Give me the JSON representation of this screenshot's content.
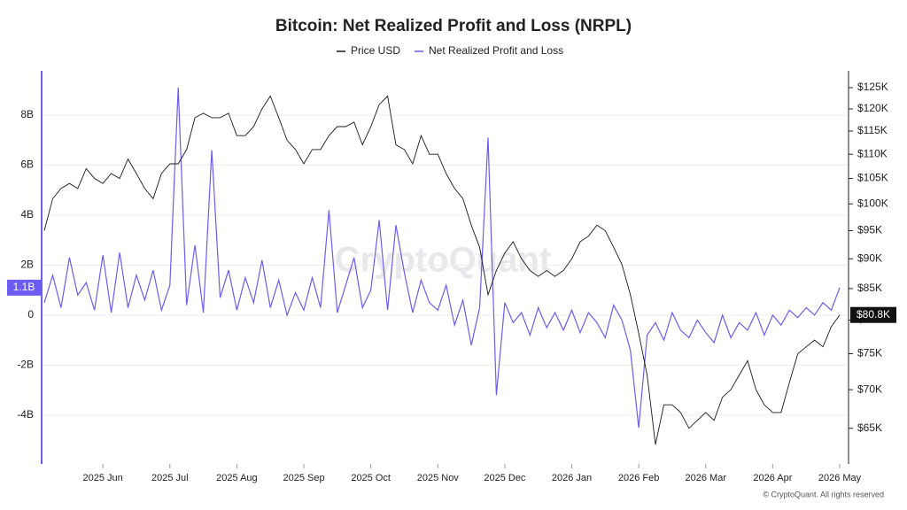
{
  "chart_data": {
    "type": "line",
    "title": "Bitcoin: Net Realized Profit and Loss (NRPL)",
    "watermark": "CryptoQuant",
    "footer": "© CryptoQuant. All rights reserved",
    "legend": "top",
    "grid": true,
    "categories": [
      null,
      null,
      null,
      null,
      null,
      null,
      null,
      "2025 Jun",
      null,
      null,
      null,
      null,
      null,
      null,
      null,
      "2025 Jul",
      null,
      null,
      null,
      null,
      null,
      null,
      null,
      "2025 Aug",
      null,
      null,
      null,
      null,
      null,
      null,
      null,
      "2025 Sep",
      null,
      null,
      null,
      null,
      null,
      null,
      null,
      "2025 Oct",
      null,
      null,
      null,
      null,
      null,
      null,
      null,
      "2025 Nov",
      null,
      null,
      null,
      null,
      null,
      null,
      null,
      "2025 Dec",
      null,
      null,
      null,
      null,
      null,
      null,
      null,
      "2026 Jan",
      null,
      null,
      null,
      null,
      null,
      null,
      null,
      "2026 Feb",
      null,
      null,
      null,
      null,
      null,
      null,
      null,
      "2026 Mar",
      null,
      null,
      null,
      null,
      null,
      null,
      null,
      "2026 Apr",
      null,
      null,
      null,
      null,
      null,
      null,
      null,
      "2026 May"
    ],
    "ylim": [
      -5.95,
      9.77
    ],
    "yticks": [
      {
        "value": -4,
        "label": "-4B"
      },
      {
        "value": -2,
        "label": "-2B"
      },
      0,
      {
        "value": 2,
        "label": "2B"
      },
      {
        "value": 4,
        "label": "4B"
      },
      {
        "value": 6,
        "label": "6B"
      },
      {
        "value": 8,
        "label": "8B"
      }
    ],
    "y2lim": [
      60700,
      129100
    ],
    "y2scale": "log",
    "y2ticks": [
      {
        "value": 65000,
        "label": "$65K"
      },
      {
        "value": 70000,
        "label": "$70K"
      },
      {
        "value": 75000,
        "label": "$75K"
      },
      {
        "value": 80000,
        "label": "$80K"
      },
      {
        "value": 85000,
        "label": "$85K"
      },
      {
        "value": 90000,
        "label": "$90K"
      },
      {
        "value": 95000,
        "label": "$95K"
      },
      {
        "value": 100000,
        "label": "$100K"
      },
      {
        "value": 105000,
        "label": "$105K"
      },
      {
        "value": 110000,
        "label": "$110K"
      },
      {
        "value": 115000,
        "label": "$115K"
      },
      {
        "value": 120000,
        "label": "$120K"
      },
      {
        "value": 125000,
        "label": "$125K"
      }
    ],
    "series": [
      {
        "name": "Price USD",
        "color": "#1a1a1a",
        "axis": "y2",
        "last_label": "$80.8K",
        "values": [
          95000,
          101000,
          103000,
          104000,
          103000,
          107000,
          105000,
          104000,
          106000,
          105000,
          109000,
          106000,
          103000,
          101000,
          106000,
          108000,
          108000,
          111000,
          118000,
          119000,
          118000,
          118000,
          119000,
          114000,
          114000,
          116000,
          120000,
          123000,
          118000,
          113000,
          111000,
          108000,
          111000,
          111000,
          114000,
          116000,
          116000,
          117000,
          112000,
          116000,
          121000,
          123000,
          112000,
          111000,
          108000,
          114000,
          110000,
          110000,
          106000,
          103000,
          101000,
          96000,
          92000,
          84000,
          88000,
          91000,
          93000,
          90000,
          88000,
          87000,
          88000,
          87000,
          88000,
          90000,
          93000,
          94000,
          96000,
          95000,
          92000,
          89000,
          84000,
          78000,
          72000,
          63000,
          68000,
          68000,
          67000,
          65000,
          66000,
          67000,
          66000,
          69000,
          70000,
          72000,
          74000,
          70000,
          68000,
          67000,
          67000,
          71000,
          75000,
          76000,
          77000,
          76000,
          79000,
          80800
        ]
      },
      {
        "name": "Net Realized Profit and Loss",
        "color": "#6c5cf2",
        "last_label": "1.1B",
        "values": [
          0.5,
          1.6,
          0.3,
          2.3,
          0.8,
          1.3,
          0.2,
          2.4,
          0.1,
          2.5,
          0.3,
          1.6,
          0.6,
          1.8,
          0.2,
          1.2,
          9.1,
          0.4,
          2.8,
          0.1,
          6.6,
          0.7,
          1.8,
          0.2,
          1.5,
          0.5,
          2.2,
          0.3,
          1.4,
          0.0,
          0.9,
          0.2,
          1.5,
          0.3,
          4.2,
          0.1,
          1.2,
          2.3,
          0.3,
          1.0,
          3.8,
          0.2,
          3.6,
          1.7,
          0.1,
          1.4,
          0.5,
          0.2,
          1.2,
          -0.4,
          0.6,
          -1.2,
          0.3,
          7.1,
          -3.2,
          0.5,
          -0.3,
          0.1,
          -0.8,
          0.3,
          -0.5,
          0.1,
          -0.6,
          0.2,
          -0.7,
          0.1,
          -0.3,
          -0.9,
          0.4,
          -0.2,
          -1.4,
          -4.5,
          -0.8,
          -0.3,
          -1.0,
          0.1,
          -0.6,
          -0.9,
          -0.2,
          -0.7,
          -1.1,
          0.0,
          -0.9,
          -0.3,
          -0.6,
          0.1,
          -0.8,
          0.0,
          -0.4,
          0.2,
          -0.1,
          0.3,
          0.0,
          0.5,
          0.2,
          1.1
        ]
      }
    ]
  }
}
